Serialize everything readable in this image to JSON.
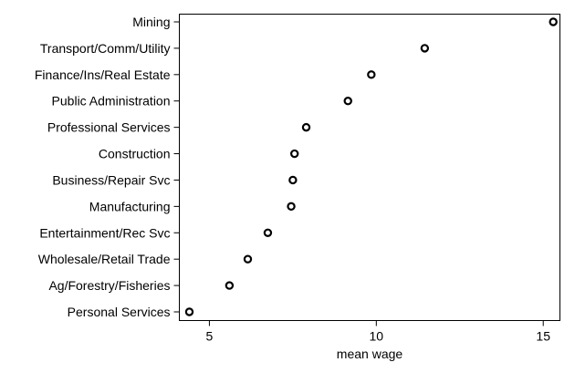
{
  "chart_data": {
    "type": "scatter",
    "title": "",
    "xlabel": "mean wage",
    "ylabel": "",
    "xlim": [
      4.1,
      15.5
    ],
    "xticks": [
      5,
      10,
      15
    ],
    "grid": false,
    "legend": "none",
    "marker": "hollow-circle",
    "categories": [
      "Mining",
      "Transport/Comm/Utility",
      "Finance/Ins/Real Estate",
      "Public Administration",
      "Professional Services",
      "Construction",
      "Business/Repair Svc",
      "Manufacturing",
      "Entertainment/Rec Svc",
      "Wholesale/Retail Trade",
      "Ag/Forestry/Fisheries",
      "Personal Services"
    ],
    "values": [
      15.3,
      11.45,
      9.85,
      9.15,
      7.9,
      7.55,
      7.5,
      7.45,
      6.75,
      6.15,
      5.6,
      4.4
    ]
  }
}
